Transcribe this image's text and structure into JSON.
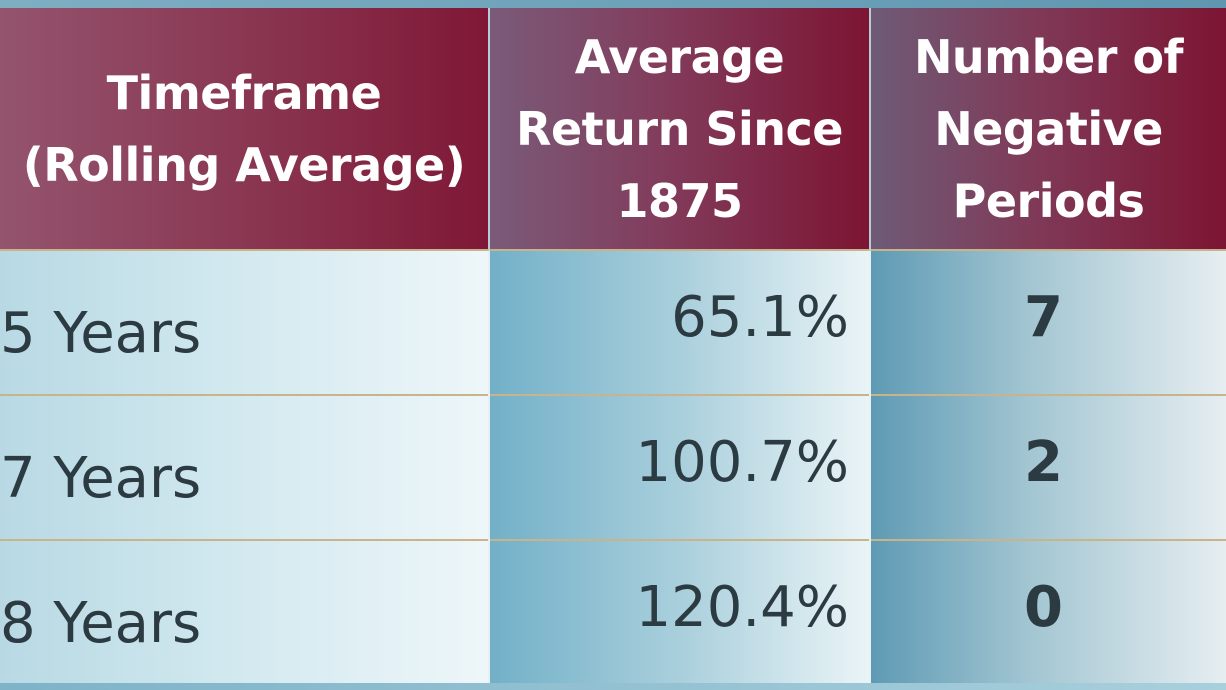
{
  "table": {
    "headers": {
      "timeframe": [
        "Timeframe",
        "(Rolling Average)"
      ],
      "average_return": [
        "Average",
        "Return Since",
        "1875"
      ],
      "negative_periods": [
        "Number of",
        "Negative",
        "Periods"
      ]
    },
    "rows": [
      {
        "timeframe": "5 Years",
        "average_return": "65.1%",
        "negative_periods": "7"
      },
      {
        "timeframe": "7 Years",
        "average_return": "100.7%",
        "negative_periods": "2"
      },
      {
        "timeframe": "8 Years",
        "average_return": "120.4%",
        "negative_periods": "0"
      }
    ]
  },
  "colors": {
    "header_maroon": "#7f1836",
    "cell_teal": "#72b0c8",
    "row_divider": "#c9b38a",
    "text_dark": "#2c3a42"
  }
}
